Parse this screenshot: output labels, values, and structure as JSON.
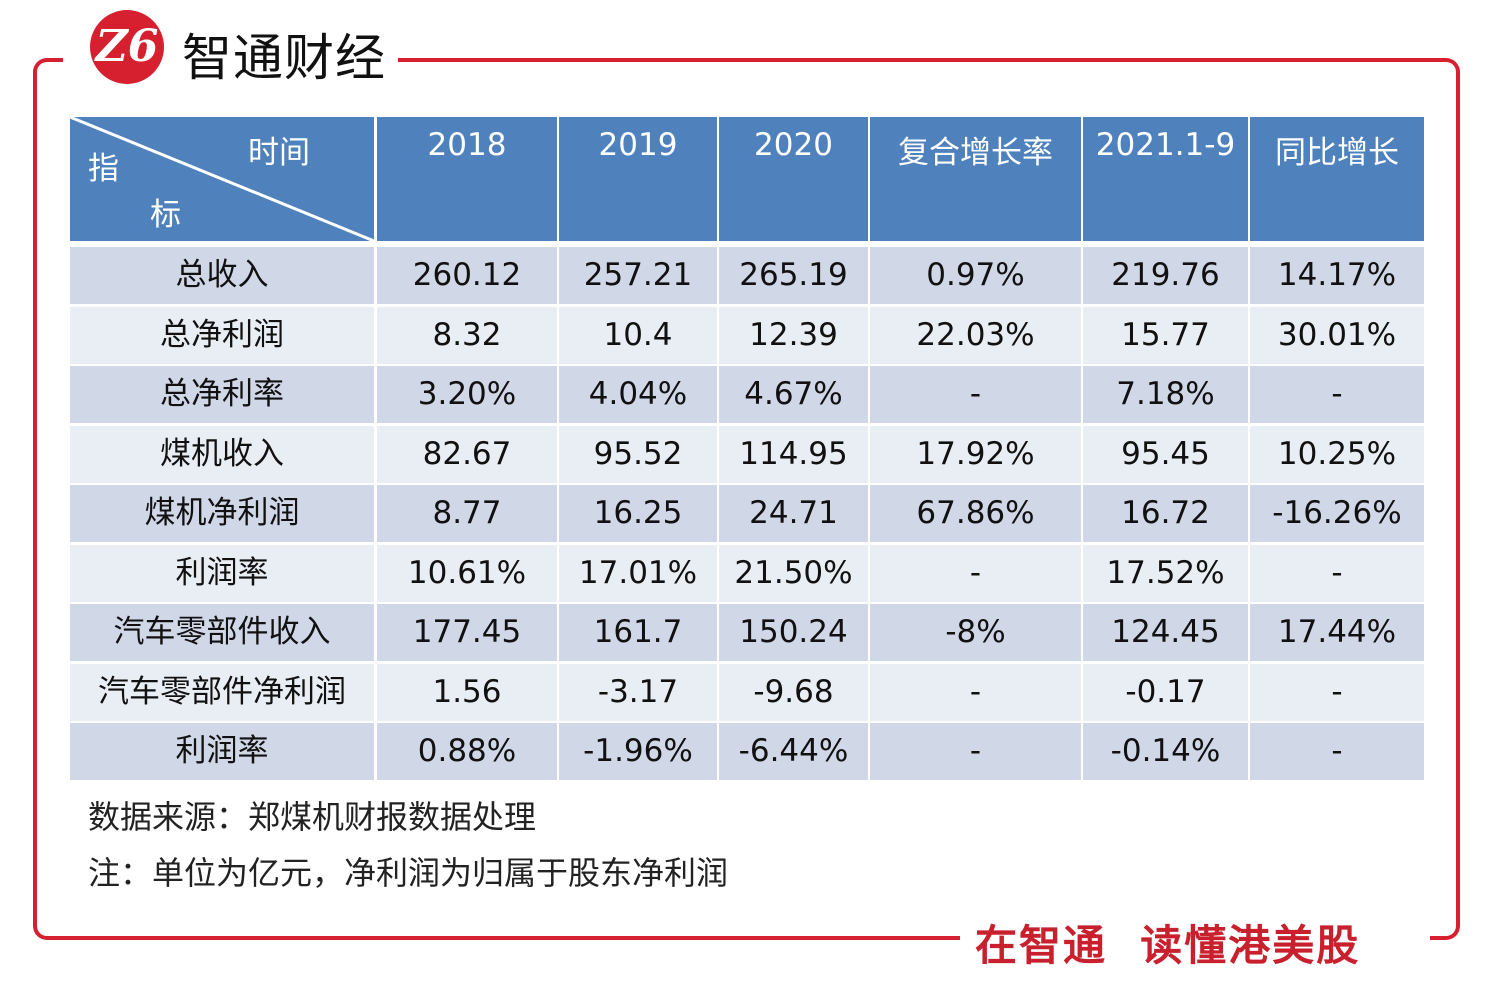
{
  "brand": {
    "logo_text": "Z6",
    "name": "智通财经",
    "slogan": "在智通  读懂港美股"
  },
  "colors": {
    "header": "#4f81bd",
    "row_odd": "#d0d8e8",
    "row_even": "#e9edf4",
    "accent_red": "#d7202f"
  },
  "chart_data": {
    "type": "table",
    "corner": {
      "top": "时间",
      "left_top": "指",
      "left_bottom": "标"
    },
    "columns": [
      "2018",
      "2019",
      "2020",
      "复合增长率",
      "2021.1-9",
      "同比增长"
    ],
    "rows": [
      {
        "label": "总收入",
        "values": [
          "260.12",
          "257.21",
          "265.19",
          "0.97%",
          "219.76",
          "14.17%"
        ]
      },
      {
        "label": "总净利润",
        "values": [
          "8.32",
          "10.4",
          "12.39",
          "22.03%",
          "15.77",
          "30.01%"
        ]
      },
      {
        "label": "总净利率",
        "values": [
          "3.20%",
          "4.04%",
          "4.67%",
          "-",
          "7.18%",
          "-"
        ]
      },
      {
        "label": "煤机收入",
        "values": [
          "82.67",
          "95.52",
          "114.95",
          "17.92%",
          "95.45",
          "10.25%"
        ]
      },
      {
        "label": "煤机净利润",
        "values": [
          "8.77",
          "16.25",
          "24.71",
          "67.86%",
          "16.72",
          "-16.26%"
        ]
      },
      {
        "label": "利润率",
        "values": [
          "10.61%",
          "17.01%",
          "21.50%",
          "-",
          "17.52%",
          "-"
        ]
      },
      {
        "label": "汽车零部件收入",
        "values": [
          "177.45",
          "161.7",
          "150.24",
          "-8%",
          "124.45",
          "17.44%"
        ]
      },
      {
        "label": "汽车零部件净利润",
        "values": [
          "1.56",
          "-3.17",
          "-9.68",
          "-",
          "-0.17",
          "-"
        ]
      },
      {
        "label": "利润率",
        "values": [
          "0.88%",
          "-1.96%",
          "-6.44%",
          "-",
          "-0.14%",
          "-"
        ]
      }
    ]
  },
  "notes": {
    "source": "数据来源：郑煤机财报数据处理",
    "unit": "注：单位为亿元，净利润为归属于股东净利润"
  }
}
